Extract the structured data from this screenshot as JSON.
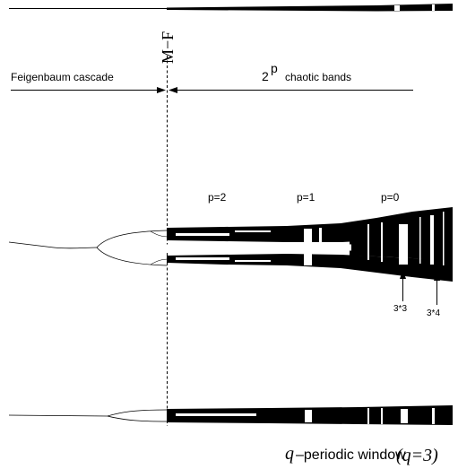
{
  "labels": {
    "feigenbaum": "Feigenbaum cascade",
    "mf": "M−F",
    "bands_base": "2",
    "bands_sup": "p",
    "bands_text": "chaotic bands",
    "p2": "p=2",
    "p1": "p=1",
    "p0": "p=0",
    "arrow_a": "3*3",
    "arrow_b": "3*4",
    "window_q": "q",
    "window_text": "–periodic window",
    "window_cond": "(q=3)"
  },
  "colors": {
    "ink": "#000000",
    "paper": "#ffffff"
  }
}
